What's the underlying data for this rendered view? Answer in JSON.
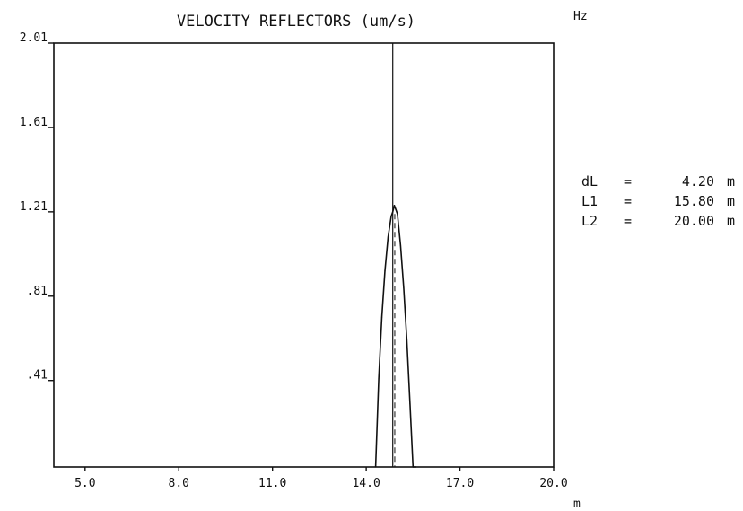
{
  "chart_data": {
    "type": "line",
    "title": "VELOCITY REFLECTORS (um/s)",
    "corner_label": "Hz",
    "xlabel": "m",
    "ylabel": "",
    "xlim": [
      4.0,
      20.0
    ],
    "ylim": [
      0.0,
      2.01
    ],
    "x_ticks": [
      {
        "value": 5.0,
        "label": "5.0"
      },
      {
        "value": 8.0,
        "label": "8.0"
      },
      {
        "value": 11.0,
        "label": "11.0"
      },
      {
        "value": 14.0,
        "label": "14.0"
      },
      {
        "value": 17.0,
        "label": "17.0"
      },
      {
        "value": 20.0,
        "label": "20.0"
      }
    ],
    "y_ticks": [
      {
        "value": 0.41,
        "label": ".41"
      },
      {
        "value": 0.81,
        "label": ".81"
      },
      {
        "value": 1.21,
        "label": "1.21"
      },
      {
        "value": 1.61,
        "label": "1.61"
      },
      {
        "value": 2.01,
        "label": "2.01"
      }
    ],
    "series": [
      {
        "x": [
          14.3,
          14.4,
          14.5,
          14.6,
          14.7,
          14.8,
          14.85,
          14.9,
          15.0,
          15.1,
          15.2,
          15.3,
          15.4,
          15.5,
          15.6
        ],
        "y": [
          0.0,
          0.42,
          0.71,
          0.93,
          1.09,
          1.19,
          1.21,
          1.24,
          1.2,
          1.05,
          0.85,
          0.6,
          0.3,
          0.0,
          0.0
        ]
      }
    ],
    "marker_x": 14.85,
    "grid": false,
    "parameters": [
      {
        "name": "dL",
        "eq": "=",
        "value": "4.20",
        "unit": "m"
      },
      {
        "name": "L1",
        "eq": "=",
        "value": "15.80",
        "unit": "m"
      },
      {
        "name": "L2",
        "eq": "=",
        "value": "20.00",
        "unit": "m"
      }
    ]
  }
}
